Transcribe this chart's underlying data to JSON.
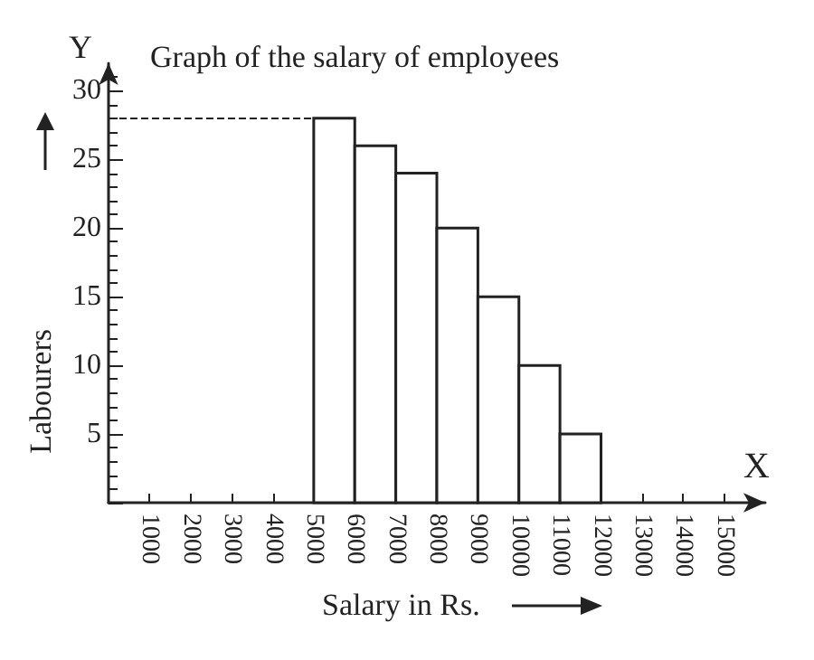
{
  "chart_data": {
    "type": "histogram",
    "title": "Graph of the salary of employees",
    "xlabel": "Salary in Rs.",
    "ylabel": "Labourers",
    "bins": [
      5000,
      6000,
      7000,
      8000,
      9000,
      10000,
      11000,
      12000
    ],
    "values": [
      28,
      26,
      24,
      20,
      15,
      10,
      5
    ],
    "color": "#ffffff",
    "xlim": [
      0,
      16000
    ],
    "xticks": [
      1000,
      2000,
      3000,
      4000,
      5000,
      6000,
      7000,
      8000,
      9000,
      10000,
      11000,
      12000,
      13000,
      14000,
      15000
    ],
    "ylim": [
      0,
      32
    ],
    "yticks": [
      {
        "value": 0,
        "label": null
      },
      5,
      10,
      15,
      20,
      25,
      30
    ],
    "ref_lines": [
      {
        "axis": "y",
        "value": 28,
        "line_style": "dashed"
      }
    ],
    "annotations": [
      "X",
      "Y"
    ]
  }
}
